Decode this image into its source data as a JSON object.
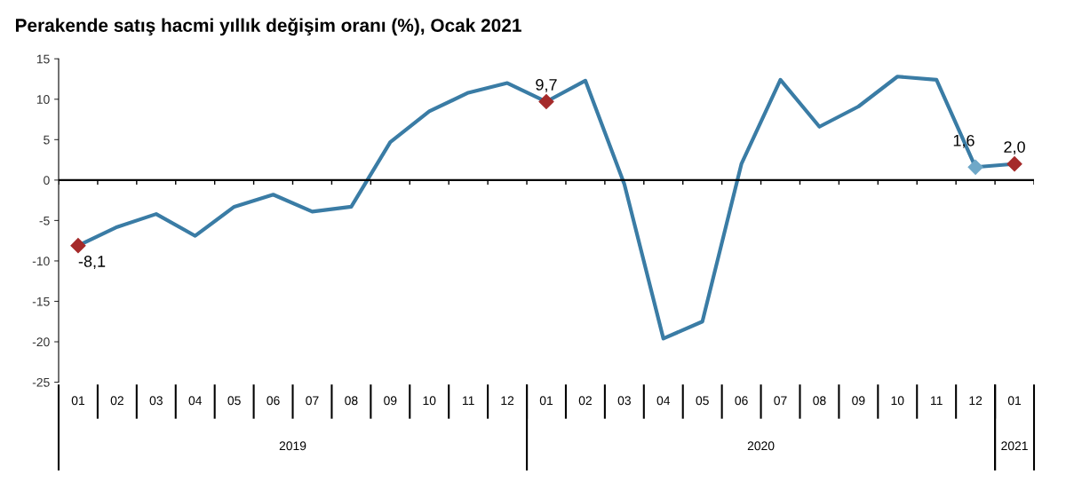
{
  "chart_data": {
    "type": "line",
    "title": "Perakende satış hacmi yıllık değişim oranı (%), Ocak 2021",
    "categories": [
      "01",
      "02",
      "03",
      "04",
      "05",
      "06",
      "07",
      "08",
      "09",
      "10",
      "11",
      "12",
      "01",
      "02",
      "03",
      "04",
      "05",
      "06",
      "07",
      "08",
      "09",
      "10",
      "11",
      "12",
      "01"
    ],
    "series": [
      {
        "color": "#3a7ca5",
        "values": [
          -8.1,
          -5.8,
          -4.2,
          -6.9,
          -3.3,
          -1.8,
          -3.9,
          -3.3,
          4.7,
          8.5,
          10.8,
          12.0,
          9.7,
          12.3,
          -0.5,
          -19.6,
          -17.5,
          2.0,
          12.4,
          6.6,
          9.1,
          12.8,
          12.4,
          1.6,
          2.0
        ],
        "value_labels": [
          "-8,1",
          null,
          null,
          null,
          null,
          null,
          null,
          null,
          null,
          null,
          null,
          null,
          "9,7",
          null,
          null,
          null,
          null,
          null,
          null,
          null,
          null,
          null,
          null,
          "1,6",
          "2,0"
        ],
        "colors": [
          "#a52a2a",
          null,
          null,
          null,
          null,
          null,
          null,
          null,
          null,
          null,
          null,
          null,
          "#a52a2a",
          null,
          null,
          null,
          null,
          null,
          null,
          null,
          null,
          null,
          null,
          "#6fa8c8",
          "#a52a2a"
        ]
      }
    ],
    "ylim": [
      -25,
      15
    ],
    "yticks": [
      15,
      10,
      5,
      0,
      -5,
      -10,
      -15,
      -20,
      -25
    ],
    "line_style": "solid",
    "annotations": [
      "2019",
      "2020",
      "2021"
    ]
  }
}
